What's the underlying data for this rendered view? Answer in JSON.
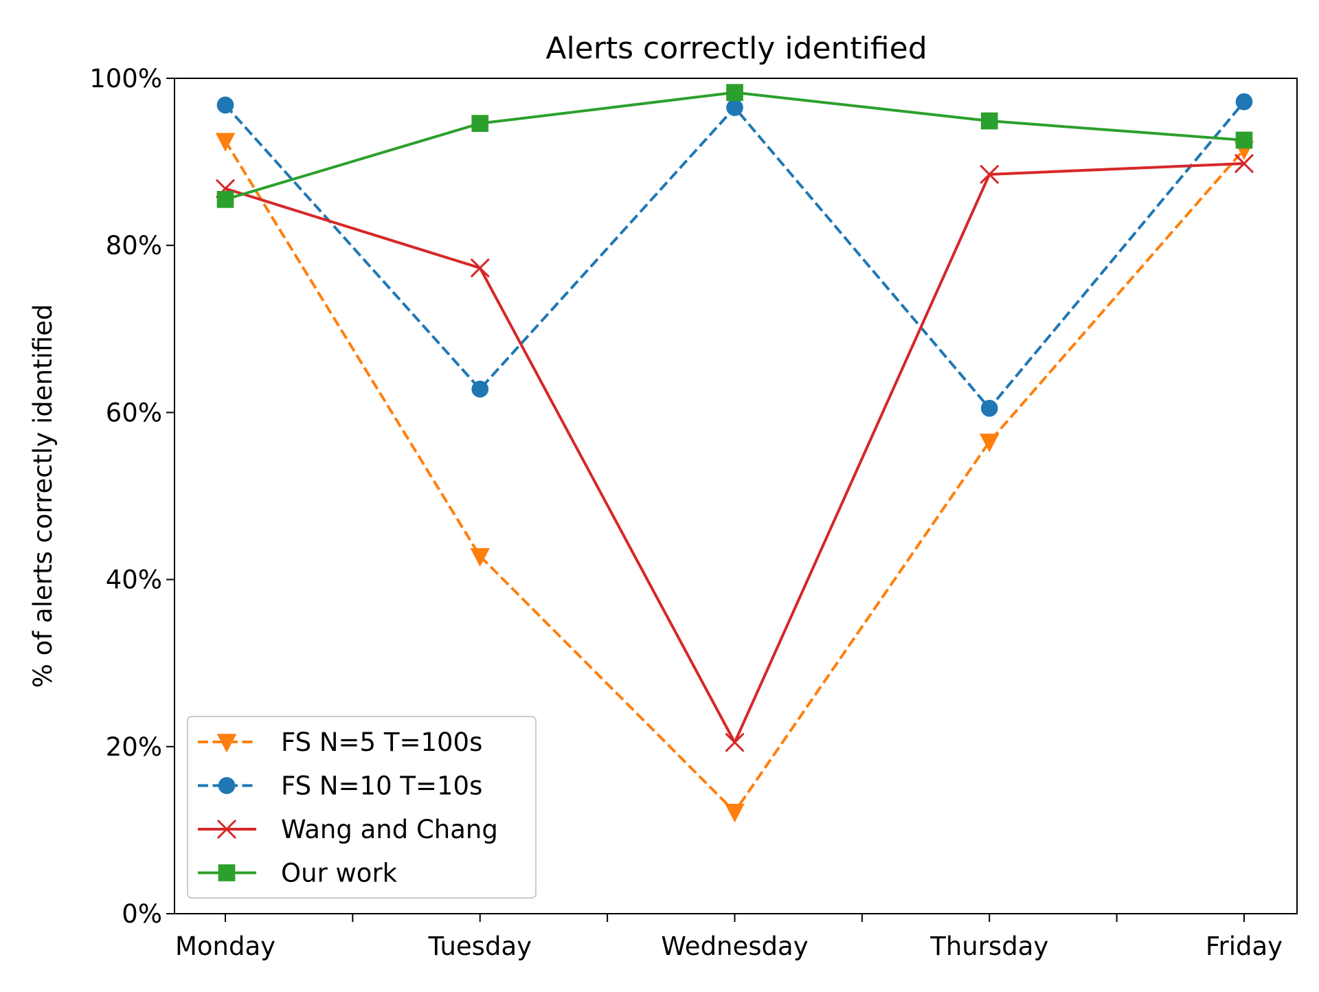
{
  "chart_data": {
    "type": "line",
    "title": "Alerts correctly identified",
    "xlabel": "",
    "ylabel": "% of alerts correctly identified",
    "categories": [
      "Monday",
      "Tuesday",
      "Wednesday",
      "Thursday",
      "Friday"
    ],
    "y_ticks": [
      "0%",
      "20%",
      "40%",
      "60%",
      "80%",
      "100%"
    ],
    "ylim": [
      0,
      100
    ],
    "grid": false,
    "legend_position": "lower-left",
    "series": [
      {
        "name": "FS N=5 T=100s",
        "values": [
          92.5,
          42.8,
          12.2,
          56.5,
          91.5
        ],
        "color": "#ff7f0e",
        "line_style": "dashed",
        "marker": "triangle-down"
      },
      {
        "name": "FS N=10 T=10s",
        "values": [
          96.8,
          62.8,
          96.5,
          60.5,
          97.2
        ],
        "color": "#1f77b4",
        "line_style": "dashed",
        "marker": "circle"
      },
      {
        "name": "Wang and Chang",
        "values": [
          86.8,
          77.3,
          20.5,
          88.5,
          89.8
        ],
        "color": "#d62728",
        "line_style": "solid",
        "marker": "x"
      },
      {
        "name": "Our work",
        "values": [
          85.5,
          94.6,
          98.3,
          94.9,
          92.6
        ],
        "color": "#2ca02c",
        "line_style": "solid",
        "marker": "square"
      }
    ]
  }
}
